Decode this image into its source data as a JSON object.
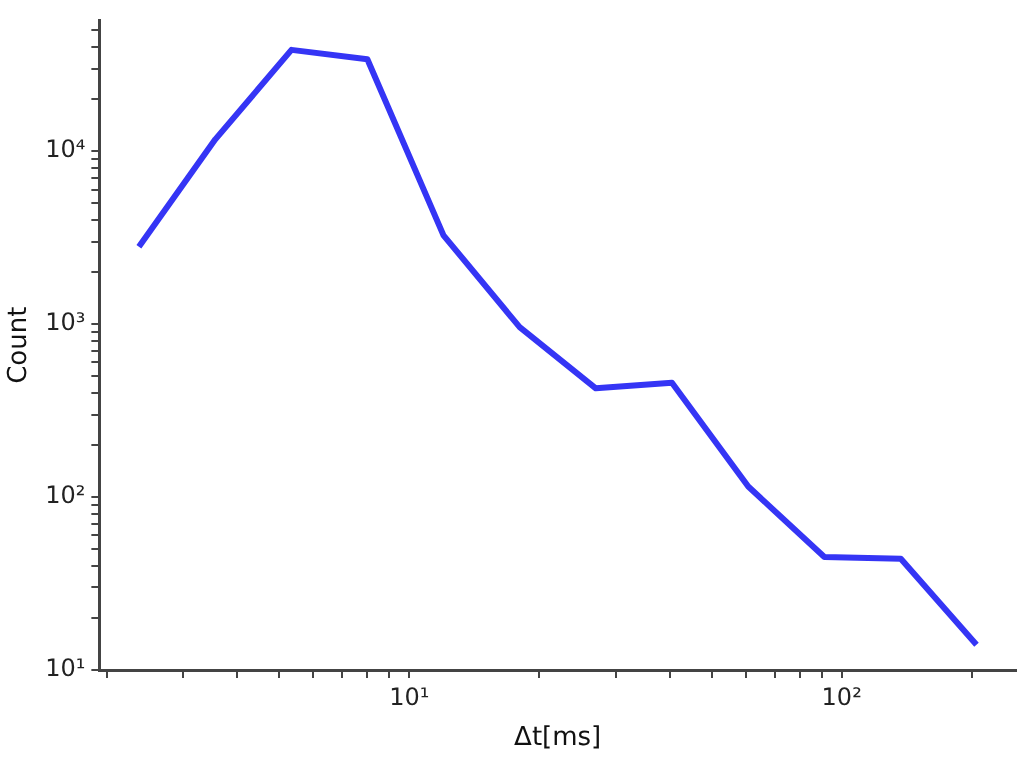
{
  "chart_data": {
    "type": "line",
    "xlabel": "Δt[ms]",
    "ylabel": "Count",
    "log": "xy",
    "grid": false,
    "legend": false,
    "marker": "none",
    "line_style": "solid",
    "x": [
      2.37,
      3.56,
      5.34,
      8.0,
      12.0,
      18.0,
      27.0,
      40.5,
      60.8,
      91.2,
      137,
      205
    ],
    "series": [
      {
        "color": "#3535f5",
        "values": [
          2800,
          11700,
          38500,
          34000,
          3260,
          960,
          425,
          458,
          115,
          45,
          44,
          14
        ]
      }
    ],
    "xlim": [
      1.92,
      253
    ],
    "ylim": [
      10,
      57000
    ],
    "xticks": [
      {
        "value": 2,
        "label": null
      },
      {
        "value": 3,
        "label": null
      },
      {
        "value": 4,
        "label": null
      },
      {
        "value": 5,
        "label": null
      },
      {
        "value": 6,
        "label": null
      },
      {
        "value": 7,
        "label": null
      },
      {
        "value": 8,
        "label": null
      },
      {
        "value": 9,
        "label": null
      },
      {
        "value": 10,
        "label": "10¹"
      },
      {
        "value": 20,
        "label": null
      },
      {
        "value": 30,
        "label": null
      },
      {
        "value": 40,
        "label": null
      },
      {
        "value": 50,
        "label": null
      },
      {
        "value": 60,
        "label": null
      },
      {
        "value": 70,
        "label": null
      },
      {
        "value": 80,
        "label": null
      },
      {
        "value": 90,
        "label": null
      },
      {
        "value": 100,
        "label": "10²"
      },
      {
        "value": 200,
        "label": null
      }
    ],
    "yticks": [
      {
        "value": 10,
        "label": "10¹"
      },
      {
        "value": 20,
        "label": null
      },
      {
        "value": 30,
        "label": null
      },
      {
        "value": 40,
        "label": null
      },
      {
        "value": 50,
        "label": null
      },
      {
        "value": 60,
        "label": null
      },
      {
        "value": 70,
        "label": null
      },
      {
        "value": 80,
        "label": null
      },
      {
        "value": 90,
        "label": null
      },
      {
        "value": 100,
        "label": "10²"
      },
      {
        "value": 200,
        "label": null
      },
      {
        "value": 300,
        "label": null
      },
      {
        "value": 400,
        "label": null
      },
      {
        "value": 500,
        "label": null
      },
      {
        "value": 600,
        "label": null
      },
      {
        "value": 700,
        "label": null
      },
      {
        "value": 800,
        "label": null
      },
      {
        "value": 900,
        "label": null
      },
      {
        "value": 1000,
        "label": "10³"
      },
      {
        "value": 2000,
        "label": null
      },
      {
        "value": 3000,
        "label": null
      },
      {
        "value": 4000,
        "label": null
      },
      {
        "value": 5000,
        "label": null
      },
      {
        "value": 6000,
        "label": null
      },
      {
        "value": 7000,
        "label": null
      },
      {
        "value": 8000,
        "label": null
      },
      {
        "value": 9000,
        "label": null
      },
      {
        "value": 10000,
        "label": "10⁴"
      },
      {
        "value": 20000,
        "label": null
      },
      {
        "value": 30000,
        "label": null
      },
      {
        "value": 40000,
        "label": null
      },
      {
        "value": 50000,
        "label": null
      }
    ]
  }
}
